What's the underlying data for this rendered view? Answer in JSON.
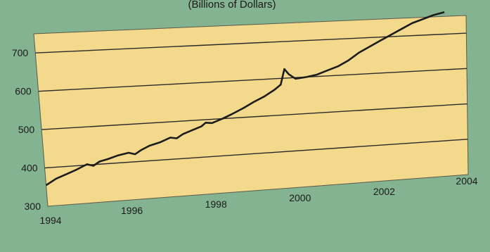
{
  "colors": {
    "background": "#84b391",
    "plot_fill": "#f2d98c",
    "line": "#1c1c1c",
    "gridline": "#2a2a2a",
    "text": "#1a1a1a"
  },
  "subtitle": "(Billions of Dollars)",
  "chart_data": {
    "type": "line",
    "title": "",
    "subtitle": "(Billions of Dollars)",
    "xlabel": "",
    "ylabel": "",
    "xlim": [
      1994,
      2004
    ],
    "ylim": [
      300,
      750
    ],
    "grid": true,
    "x_ticks": [
      "1994",
      "1996",
      "1998",
      "2000",
      "2002",
      "2004"
    ],
    "y_ticks": [
      "300",
      "400",
      "500",
      "600",
      "700"
    ],
    "series": [
      {
        "x": [
          1994.0,
          1994.25,
          1994.5,
          1994.75,
          1995.0,
          1995.15,
          1995.3,
          1995.5,
          1995.75,
          1996.0,
          1996.15,
          1996.3,
          1996.5,
          1996.75,
          1997.0,
          1997.15,
          1997.3,
          1997.5,
          1997.75,
          1997.85,
          1998.0,
          1998.25,
          1998.5,
          1998.75,
          1999.0,
          1999.25,
          1999.5,
          1999.65,
          1999.75,
          1999.85,
          2000.0,
          2000.25,
          2000.5,
          2000.75,
          2001.0,
          2001.25,
          2001.5,
          2001.75,
          2002.0,
          2002.25,
          2002.5,
          2002.75,
          2003.0,
          2003.25,
          2003.5
        ],
        "values": [
          355,
          370,
          380,
          390,
          402,
          397,
          407,
          412,
          420,
          425,
          420,
          430,
          440,
          447,
          458,
          455,
          465,
          473,
          483,
          492,
          490,
          500,
          512,
          525,
          540,
          553,
          570,
          583,
          625,
          610,
          597,
          600,
          605,
          615,
          625,
          640,
          660,
          675,
          690,
          705,
          720,
          735,
          745,
          755,
          762
        ]
      }
    ]
  }
}
